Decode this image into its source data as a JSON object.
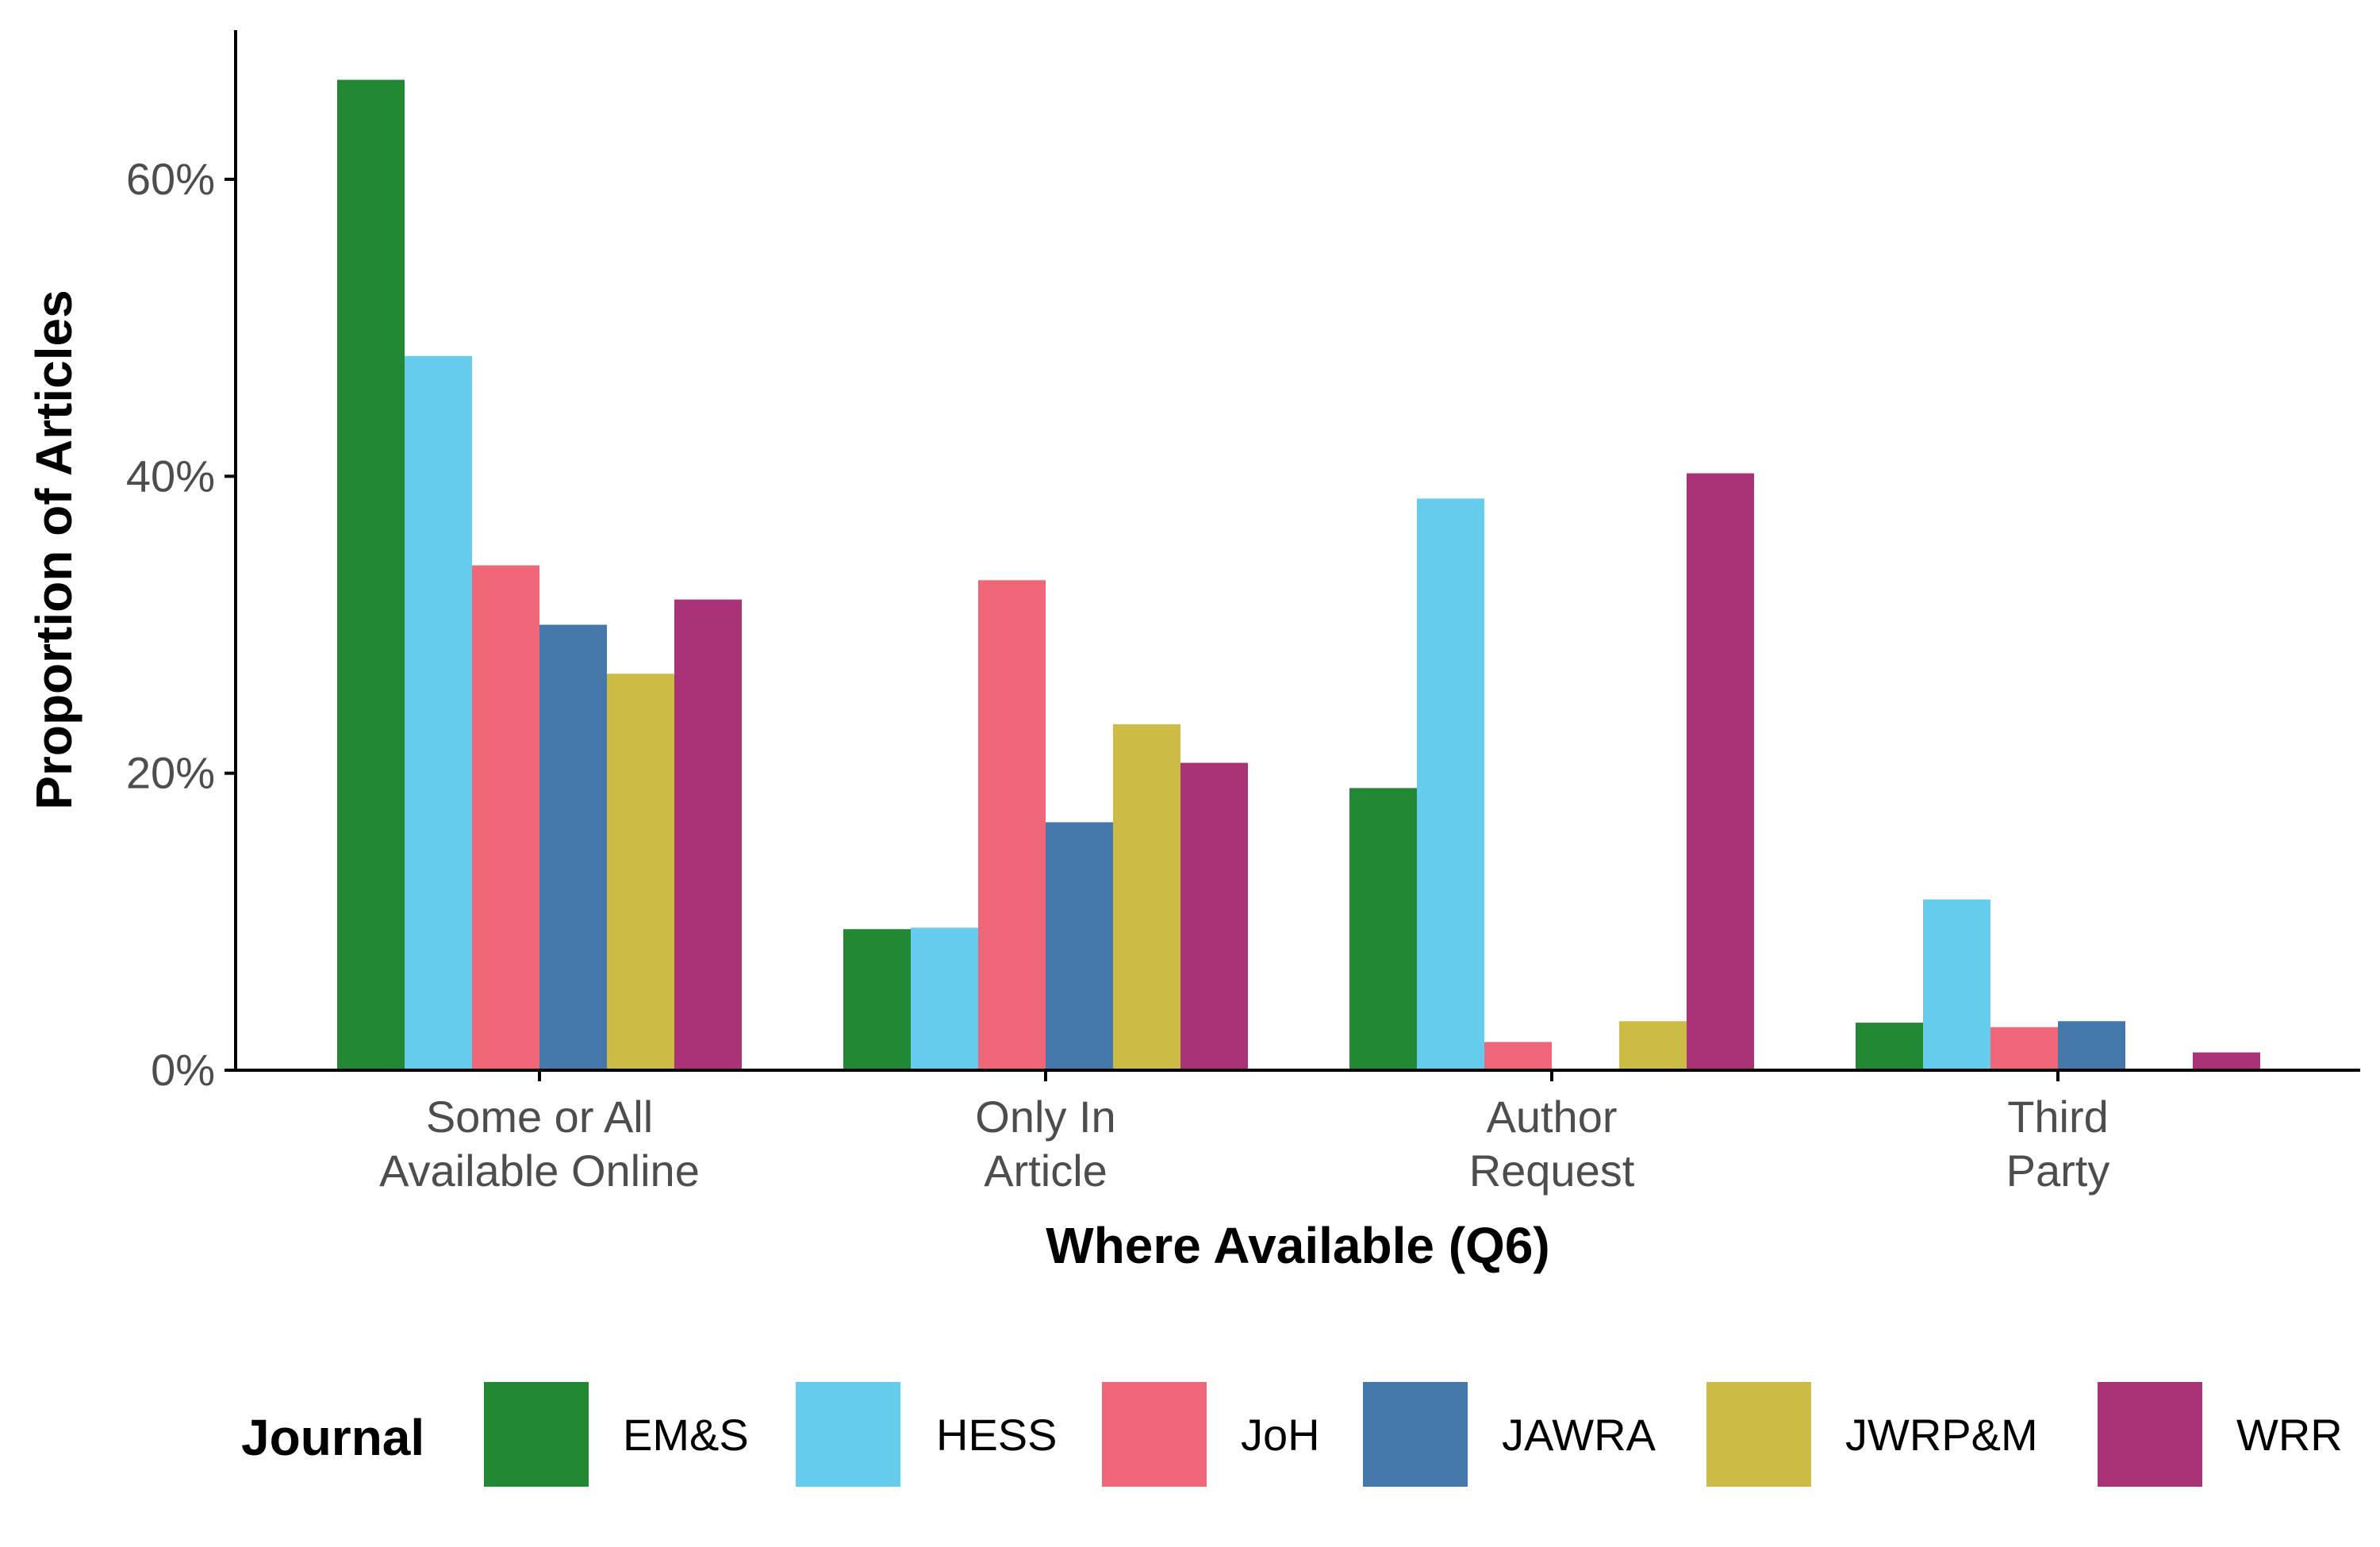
{
  "chart_data": {
    "type": "bar",
    "xlabel": "Where Available (Q6)",
    "ylabel": "Proportion of Articles",
    "ylim": [
      0,
      0.7
    ],
    "y_ticks": [
      0,
      0.2,
      0.4,
      0.6
    ],
    "y_tick_labels": [
      "0%",
      "20%",
      "40%",
      "60%"
    ],
    "categories": [
      [
        "Some or All",
        "Available Online"
      ],
      [
        "Only In",
        "Article"
      ],
      [
        "Author",
        "Request"
      ],
      [
        "Third",
        "Party"
      ]
    ],
    "legend": {
      "title": "Journal",
      "position": "bottom"
    },
    "grid": false,
    "series": [
      {
        "name": "EM&S",
        "color": "#228833",
        "values": [
          0.667,
          0.095,
          0.19,
          0.032
        ]
      },
      {
        "name": "HESS",
        "color": "#66CCEE",
        "values": [
          0.481,
          0.096,
          0.385,
          0.115
        ]
      },
      {
        "name": "JoH",
        "color": "#EE6677",
        "values": [
          0.34,
          0.33,
          0.019,
          0.029
        ]
      },
      {
        "name": "JAWRA",
        "color": "#4477AA",
        "values": [
          0.3,
          0.167,
          0.0,
          0.033
        ]
      },
      {
        "name": "JWRP&M",
        "color": "#CCBB44",
        "values": [
          0.267,
          0.233,
          0.033,
          0.0
        ]
      },
      {
        "name": "WRR",
        "color": "#AA3377",
        "values": [
          0.317,
          0.207,
          0.402,
          0.012
        ]
      }
    ]
  }
}
